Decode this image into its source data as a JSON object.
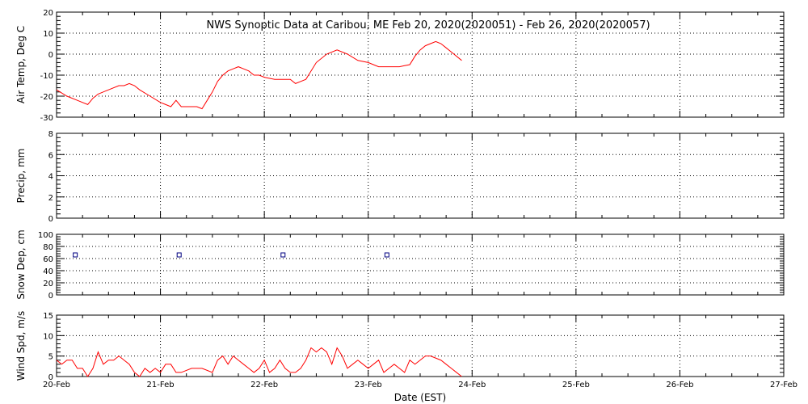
{
  "chart_data": {
    "title": "NWS Synoptic Data at Caribou, ME   Feb 20, 2020(2020051) - Feb 26, 2020(2020057)",
    "xlabel": "Date (EST)",
    "x_ticks": [
      "20-Feb",
      "21-Feb",
      "22-Feb",
      "23-Feb",
      "24-Feb",
      "25-Feb",
      "26-Feb",
      "27-Feb"
    ],
    "xlim": [
      0,
      7
    ],
    "line_color": "#ff0000",
    "marker_color": "#000080",
    "panels": [
      {
        "type": "line",
        "ylabel": "Air Temp, Deg C",
        "ylim": [
          -30,
          20
        ],
        "y_ticks": [
          -30,
          -20,
          -10,
          0,
          10,
          20
        ],
        "series": [
          {
            "x": [
              0.0,
              0.1,
              0.2,
              0.3,
              0.35,
              0.4,
              0.5,
              0.6,
              0.65,
              0.7,
              0.75,
              0.8,
              0.9,
              1.0,
              1.05,
              1.1,
              1.15,
              1.2,
              1.25,
              1.3,
              1.35,
              1.4,
              1.45,
              1.5,
              1.55,
              1.6,
              1.65,
              1.7,
              1.75,
              1.8,
              1.85,
              1.9,
              1.95,
              2.0,
              2.1,
              2.15,
              2.2,
              2.25,
              2.3,
              2.35,
              2.4,
              2.5,
              2.6,
              2.7,
              2.8,
              2.9,
              3.0,
              3.1,
              3.2,
              3.3,
              3.35,
              3.4,
              3.45,
              3.5,
              3.55,
              3.6,
              3.65,
              3.7,
              3.75,
              3.8,
              3.9
            ],
            "y": [
              -17,
              -20,
              -22,
              -24,
              -21,
              -19,
              -17,
              -15,
              -15,
              -14,
              -15,
              -17,
              -20,
              -23,
              -24,
              -25,
              -22,
              -25,
              -25,
              -25,
              -25,
              -26,
              -22,
              -18,
              -13,
              -10,
              -8,
              -7,
              -6,
              -7,
              -8,
              -10,
              -10,
              -11,
              -12,
              -12,
              -12,
              -12,
              -14,
              -13,
              -12,
              -4,
              0,
              2,
              0,
              -3,
              -4,
              -6,
              -6,
              -6,
              -5.5,
              -5,
              -1,
              2,
              4,
              5,
              6,
              5,
              3,
              1,
              -3
            ]
          }
        ]
      },
      {
        "type": "line",
        "ylabel": "Precip, mm",
        "ylim": [
          0,
          8
        ],
        "y_ticks": [
          0,
          2,
          4,
          6,
          8
        ],
        "series": []
      },
      {
        "type": "scatter",
        "ylabel": "Snow Dep, cm",
        "ylim": [
          0,
          100
        ],
        "y_ticks": [
          0,
          20,
          40,
          60,
          80,
          100
        ],
        "series": [
          {
            "x": [
              0.18,
              1.18,
              2.18,
              3.18
            ],
            "y": [
              66,
              66,
              66,
              66
            ]
          }
        ]
      },
      {
        "type": "line",
        "ylabel": "Wind Spd, m/s",
        "ylim": [
          0,
          15
        ],
        "y_ticks": [
          0,
          5,
          10,
          15
        ],
        "series": [
          {
            "x": [
              0.0,
              0.05,
              0.1,
              0.15,
              0.2,
              0.25,
              0.3,
              0.35,
              0.4,
              0.45,
              0.5,
              0.55,
              0.6,
              0.65,
              0.7,
              0.75,
              0.8,
              0.85,
              0.9,
              0.95,
              1.0,
              1.05,
              1.1,
              1.15,
              1.2,
              1.3,
              1.35,
              1.4,
              1.5,
              1.55,
              1.6,
              1.65,
              1.7,
              1.75,
              1.8,
              1.85,
              1.9,
              1.95,
              2.0,
              2.05,
              2.1,
              2.15,
              2.2,
              2.25,
              2.3,
              2.35,
              2.4,
              2.45,
              2.5,
              2.55,
              2.6,
              2.65,
              2.7,
              2.75,
              2.8,
              2.85,
              2.9,
              2.95,
              3.0,
              3.05,
              3.1,
              3.15,
              3.2,
              3.25,
              3.3,
              3.35,
              3.4,
              3.45,
              3.5,
              3.55,
              3.6,
              3.7,
              3.75,
              3.8,
              3.85,
              3.9
            ],
            "y": [
              4,
              3,
              4,
              4,
              2,
              2,
              0,
              2,
              6,
              3,
              4,
              4,
              5,
              4,
              3,
              1,
              0,
              2,
              1,
              2,
              1,
              3,
              3,
              1,
              1,
              2,
              2,
              2,
              1,
              4,
              5,
              3,
              5,
              4,
              3,
              2,
              1,
              2,
              4,
              1,
              2,
              4,
              2,
              1,
              1,
              2,
              4,
              7,
              6,
              7,
              6,
              3,
              7,
              5,
              2,
              3,
              4,
              3,
              2,
              3,
              4,
              1,
              2,
              3,
              2,
              1,
              4,
              3,
              4,
              5,
              5,
              4,
              3,
              2,
              1,
              0
            ]
          }
        ]
      }
    ]
  }
}
